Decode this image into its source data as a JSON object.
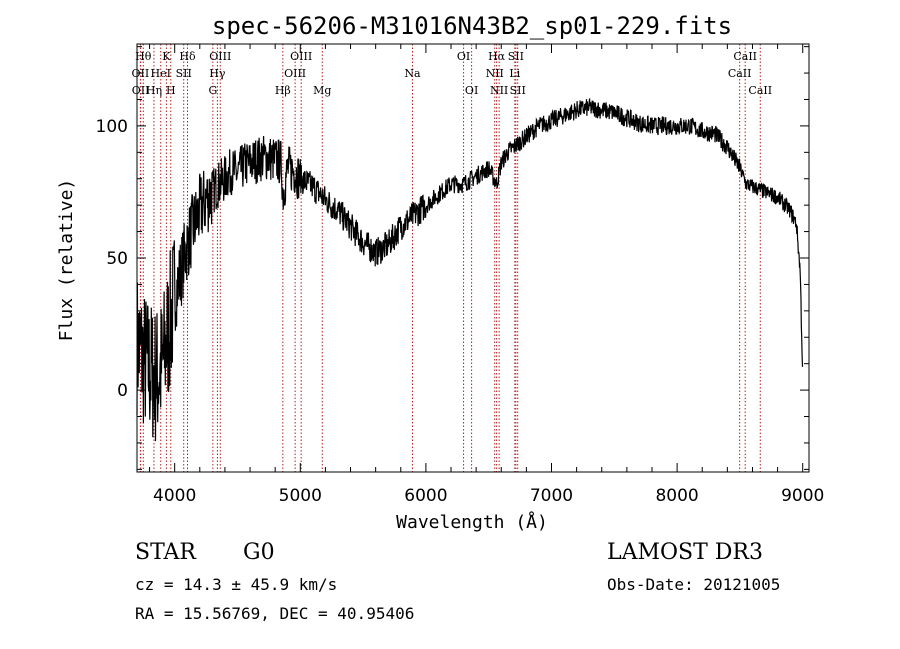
{
  "chart_data": {
    "type": "line",
    "title": "spec-56206-M31016N43B2_sp01-229.fits",
    "xlabel": "Wavelength (Å)",
    "ylabel": "Flux (relative)",
    "xlim": [
      3700,
      9050
    ],
    "ylim": [
      -31,
      131
    ],
    "xticks": [
      4000,
      5000,
      6000,
      7000,
      8000,
      9000
    ],
    "yticks": [
      0,
      50,
      100
    ],
    "series": [
      {
        "name": "flux",
        "x": [
          3700,
          3750,
          3800,
          3850,
          3900,
          3950,
          4000,
          4050,
          4100,
          4150,
          4200,
          4250,
          4300,
          4350,
          4400,
          4450,
          4500,
          4550,
          4600,
          4650,
          4700,
          4750,
          4800,
          4850,
          4861,
          4900,
          4950,
          5000,
          5100,
          5200,
          5300,
          5400,
          5500,
          5600,
          5700,
          5800,
          5900,
          6000,
          6100,
          6200,
          6300,
          6400,
          6500,
          6563,
          6600,
          6650,
          6700,
          6800,
          6900,
          7000,
          7100,
          7200,
          7300,
          7400,
          7500,
          7600,
          7700,
          7800,
          7900,
          8000,
          8100,
          8200,
          8300,
          8400,
          8450,
          8500,
          8550,
          8600,
          8650,
          8700,
          8800,
          8900,
          8950,
          8980,
          9000
        ],
        "y": [
          18,
          12,
          8,
          5,
          9,
          22,
          35,
          45,
          55,
          62,
          68,
          72,
          75,
          78,
          80,
          83,
          82,
          85,
          86,
          87,
          88,
          88,
          87,
          86,
          74,
          84,
          83,
          80,
          77,
          72,
          68,
          62,
          56,
          52,
          55,
          62,
          66,
          70,
          74,
          78,
          78,
          81,
          84,
          78,
          86,
          90,
          92,
          96,
          100,
          102,
          104,
          106,
          107,
          106,
          105,
          103,
          101,
          100,
          100,
          100,
          100,
          98,
          97,
          92,
          88,
          84,
          78,
          77,
          76,
          75,
          73,
          68,
          63,
          45,
          5
        ]
      }
    ],
    "lines": [
      {
        "label": "Hθ",
        "x": 3750,
        "row": 1
      },
      {
        "label": "OII",
        "x": 3727,
        "row": 2
      },
      {
        "label": "OII",
        "x": 3729,
        "row": 3
      },
      {
        "label": "Hη",
        "x": 3835,
        "row": 3
      },
      {
        "label": "HeI",
        "x": 3889,
        "row": 2
      },
      {
        "label": "K",
        "x": 3934,
        "row": 1
      },
      {
        "label": "H",
        "x": 3969,
        "row": 3
      },
      {
        "label": "Hδ",
        "x": 4102,
        "row": 1
      },
      {
        "label": "SII",
        "x": 4072,
        "row": 2
      },
      {
        "label": "Hγ",
        "x": 4340,
        "row": 2
      },
      {
        "label": "G",
        "x": 4304,
        "row": 3
      },
      {
        "label": "OIII",
        "x": 4363,
        "row": 1
      },
      {
        "label": "Hβ",
        "x": 4861,
        "row": 3
      },
      {
        "label": "OIII",
        "x": 5007,
        "row": 1
      },
      {
        "label": "OIII",
        "x": 4959,
        "row": 2
      },
      {
        "label": "Mg",
        "x": 5175,
        "row": 3
      },
      {
        "label": "Na",
        "x": 5893,
        "row": 2
      },
      {
        "label": "OI",
        "x": 6300,
        "row": 1
      },
      {
        "label": "OI",
        "x": 6364,
        "row": 3
      },
      {
        "label": "Hα",
        "x": 6563,
        "row": 1
      },
      {
        "label": "NII",
        "x": 6548,
        "row": 2
      },
      {
        "label": "NII",
        "x": 6583,
        "row": 3
      },
      {
        "label": "SII",
        "x": 6716,
        "row": 1
      },
      {
        "label": "Li",
        "x": 6708,
        "row": 2
      },
      {
        "label": "SII",
        "x": 6731,
        "row": 3
      },
      {
        "label": "CaII",
        "x": 8498,
        "row": 2
      },
      {
        "label": "CaII",
        "x": 8542,
        "row": 1
      },
      {
        "label": "CaII",
        "x": 8662,
        "row": 3
      }
    ]
  },
  "info": {
    "class": "STAR",
    "subclass": "G0",
    "survey": "LAMOST DR3",
    "cz": "cz = 14.3 ± 45.9 km/s",
    "obs_date": "Obs-Date: 20121005",
    "coords": "RA =  15.56769, DEC =  40.95406"
  },
  "colors": {
    "spectrum": "#000000",
    "line_marker": "#b22222",
    "background": "#ffffff"
  }
}
